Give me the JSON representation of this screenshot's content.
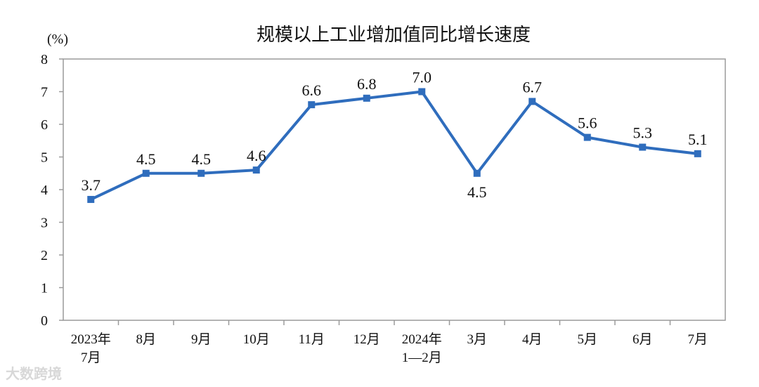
{
  "chart_data": {
    "type": "line",
    "title": "规模以上工业增加值同比增长速度",
    "ylabel": "(%)",
    "ylim": [
      0,
      8
    ],
    "yticks": [
      0,
      1,
      2,
      3,
      4,
      5,
      6,
      7,
      8
    ],
    "categories": [
      [
        "2023年",
        "7月"
      ],
      [
        "8月"
      ],
      [
        "9月"
      ],
      [
        "10月"
      ],
      [
        "11月"
      ],
      [
        "12月"
      ],
      [
        "2024年",
        "1—2月"
      ],
      [
        "3月"
      ],
      [
        "4月"
      ],
      [
        "5月"
      ],
      [
        "6月"
      ],
      [
        "7月"
      ]
    ],
    "values": [
      3.7,
      4.5,
      4.5,
      4.6,
      6.6,
      6.8,
      7.0,
      4.5,
      6.7,
      5.6,
      5.3,
      5.1
    ],
    "labels": [
      "3.7",
      "4.5",
      "4.5",
      "4.6",
      "6.6",
      "6.8",
      "7.0",
      "4.5",
      "6.7",
      "5.6",
      "5.3",
      "5.1"
    ],
    "grid": false,
    "line_color": "#2f6dbd"
  },
  "watermark": "大数跨境"
}
